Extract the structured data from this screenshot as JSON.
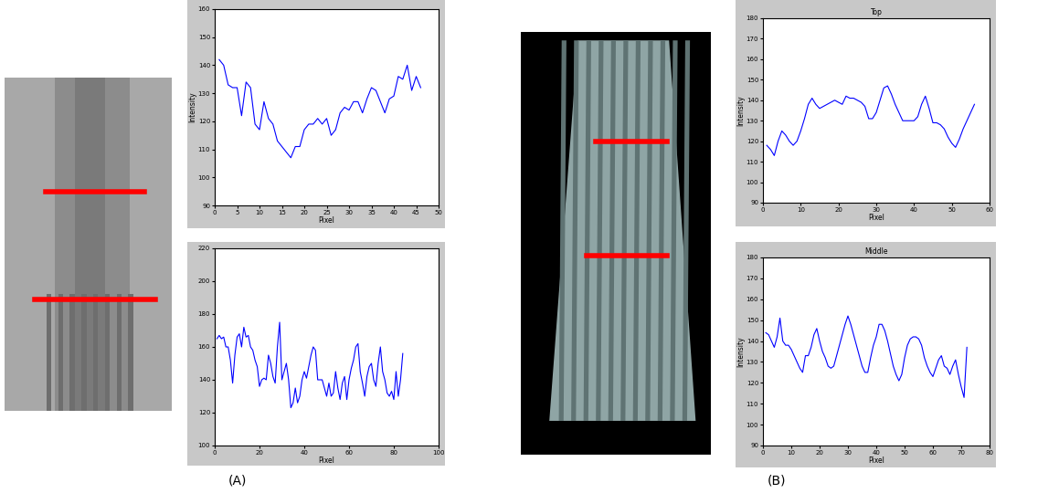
{
  "chart_data": [
    {
      "type": "line",
      "x_label": "Pixel",
      "y_label": "Intensity",
      "color": "#0000ff",
      "x": [
        1,
        2,
        3,
        4,
        5,
        6,
        7,
        8,
        9,
        10,
        11,
        12,
        13,
        14,
        15,
        16,
        17,
        18,
        19,
        20,
        21,
        22,
        23,
        24,
        25,
        26,
        27,
        28,
        29,
        30,
        31,
        32,
        33,
        34,
        35,
        36,
        37,
        38,
        39,
        40,
        41,
        42,
        43,
        44,
        45,
        46
      ],
      "values": [
        142,
        140,
        133,
        132,
        132,
        122,
        134,
        132,
        119,
        117,
        127,
        121,
        119,
        113,
        111,
        109,
        107,
        111,
        111,
        117,
        119,
        119,
        121,
        119,
        121,
        115,
        117,
        123,
        125,
        124,
        127,
        127,
        123,
        128,
        132,
        131,
        127,
        123,
        128,
        129,
        136,
        135,
        140,
        131,
        136,
        132
      ],
      "xlim": [
        0,
        50
      ],
      "xticks": [
        0,
        5,
        10,
        15,
        20,
        25,
        30,
        35,
        40,
        45,
        50
      ],
      "ylim": [
        90,
        160
      ],
      "yticks": [
        90,
        100,
        110,
        120,
        130,
        140,
        150,
        160
      ]
    },
    {
      "type": "line",
      "x_label": "Pixel",
      "color": "#0000ff",
      "x": [
        1,
        2,
        3,
        4,
        5,
        6,
        7,
        8,
        9,
        10,
        11,
        12,
        13,
        14,
        15,
        16,
        17,
        18,
        19,
        20,
        21,
        22,
        23,
        24,
        25,
        26,
        27,
        28,
        29,
        30,
        31,
        32,
        33,
        34,
        35,
        36,
        37,
        38,
        39,
        40,
        41,
        42,
        43,
        44,
        45,
        46,
        47,
        48,
        49,
        50,
        51,
        52,
        53,
        54,
        55,
        56,
        57,
        58,
        59,
        60,
        61,
        62,
        63,
        64,
        65,
        66,
        67,
        68,
        69,
        70,
        71,
        72,
        73,
        74,
        75,
        76,
        77,
        78,
        79,
        80,
        81,
        82,
        83,
        84
      ],
      "values": [
        165,
        167,
        165,
        166,
        160,
        160,
        152,
        138,
        155,
        166,
        168,
        160,
        172,
        166,
        167,
        160,
        158,
        152,
        148,
        136,
        140,
        141,
        140,
        155,
        150,
        142,
        138,
        160,
        175,
        140,
        145,
        150,
        140,
        123,
        126,
        135,
        126,
        130,
        140,
        145,
        141,
        148,
        155,
        160,
        158,
        140,
        140,
        140,
        135,
        130,
        138,
        130,
        132,
        145,
        135,
        128,
        138,
        142,
        128,
        140,
        147,
        152,
        160,
        162,
        145,
        138,
        130,
        142,
        148,
        150,
        140,
        136,
        150,
        160,
        145,
        140,
        132,
        130,
        133,
        128,
        145,
        130,
        140,
        156
      ],
      "xlim": [
        0,
        100
      ],
      "xticks": [
        0,
        20,
        40,
        60,
        80,
        100
      ],
      "ylim": [
        100,
        220
      ],
      "yticks": [
        100,
        120,
        140,
        160,
        180,
        200,
        220
      ]
    },
    {
      "type": "line",
      "title": "Top",
      "x_label": "Pixel",
      "y_label": "Intensity",
      "color": "#0000ff",
      "x": [
        1,
        2,
        3,
        4,
        5,
        6,
        7,
        8,
        9,
        10,
        11,
        12,
        13,
        14,
        15,
        16,
        17,
        18,
        19,
        20,
        21,
        22,
        23,
        24,
        25,
        26,
        27,
        28,
        29,
        30,
        31,
        32,
        33,
        34,
        35,
        36,
        37,
        38,
        39,
        40,
        41,
        42,
        43,
        44,
        45,
        46,
        47,
        48,
        49,
        50,
        51,
        52,
        53,
        54,
        55,
        56
      ],
      "values": [
        118,
        116,
        113,
        120,
        125,
        123,
        120,
        118,
        120,
        125,
        131,
        138,
        141,
        138,
        136,
        137,
        138,
        139,
        140,
        139,
        138,
        142,
        141,
        141,
        140,
        139,
        137,
        131,
        131,
        134,
        140,
        146,
        147,
        143,
        138,
        134,
        130,
        130,
        130,
        130,
        132,
        138,
        142,
        136,
        129,
        129,
        128,
        126,
        122,
        119,
        117,
        121,
        126,
        130,
        134,
        138
      ],
      "xlim": [
        0,
        60
      ],
      "xticks": [
        0,
        10,
        20,
        30,
        40,
        50,
        60
      ],
      "ylim": [
        90,
        180
      ],
      "yticks": [
        90,
        100,
        110,
        120,
        130,
        140,
        150,
        160,
        170,
        180
      ]
    },
    {
      "type": "line",
      "title": "Middle",
      "x_label": "Pixel",
      "y_label": "Intensity",
      "color": "#0000ff",
      "x": [
        1,
        2,
        3,
        4,
        5,
        6,
        7,
        8,
        9,
        10,
        11,
        12,
        13,
        14,
        15,
        16,
        17,
        18,
        19,
        20,
        21,
        22,
        23,
        24,
        25,
        26,
        27,
        28,
        29,
        30,
        31,
        32,
        33,
        34,
        35,
        36,
        37,
        38,
        39,
        40,
        41,
        42,
        43,
        44,
        45,
        46,
        47,
        48,
        49,
        50,
        51,
        52,
        53,
        54,
        55,
        56,
        57,
        58,
        59,
        60,
        61,
        62,
        63,
        64,
        65,
        66,
        67,
        68,
        69,
        70,
        71,
        72
      ],
      "values": [
        144,
        143,
        140,
        137,
        142,
        151,
        140,
        138,
        138,
        136,
        133,
        130,
        127,
        125,
        133,
        133,
        137,
        143,
        146,
        140,
        135,
        132,
        128,
        127,
        128,
        133,
        138,
        143,
        148,
        152,
        148,
        143,
        138,
        133,
        128,
        125,
        125,
        132,
        138,
        142,
        148,
        148,
        145,
        140,
        134,
        128,
        124,
        121,
        124,
        132,
        138,
        141,
        142,
        142,
        141,
        138,
        132,
        128,
        125,
        123,
        127,
        131,
        133,
        128,
        127,
        124,
        128,
        131,
        124,
        118,
        113,
        137
      ],
      "xlim": [
        0,
        80
      ],
      "xticks": [
        0,
        10,
        20,
        30,
        40,
        50,
        60,
        70,
        80
      ],
      "ylim": [
        90,
        180
      ],
      "yticks": [
        90,
        100,
        110,
        120,
        130,
        140,
        150,
        160,
        170,
        180
      ]
    }
  ],
  "panel_labels": [
    "(A)",
    "(B)"
  ]
}
